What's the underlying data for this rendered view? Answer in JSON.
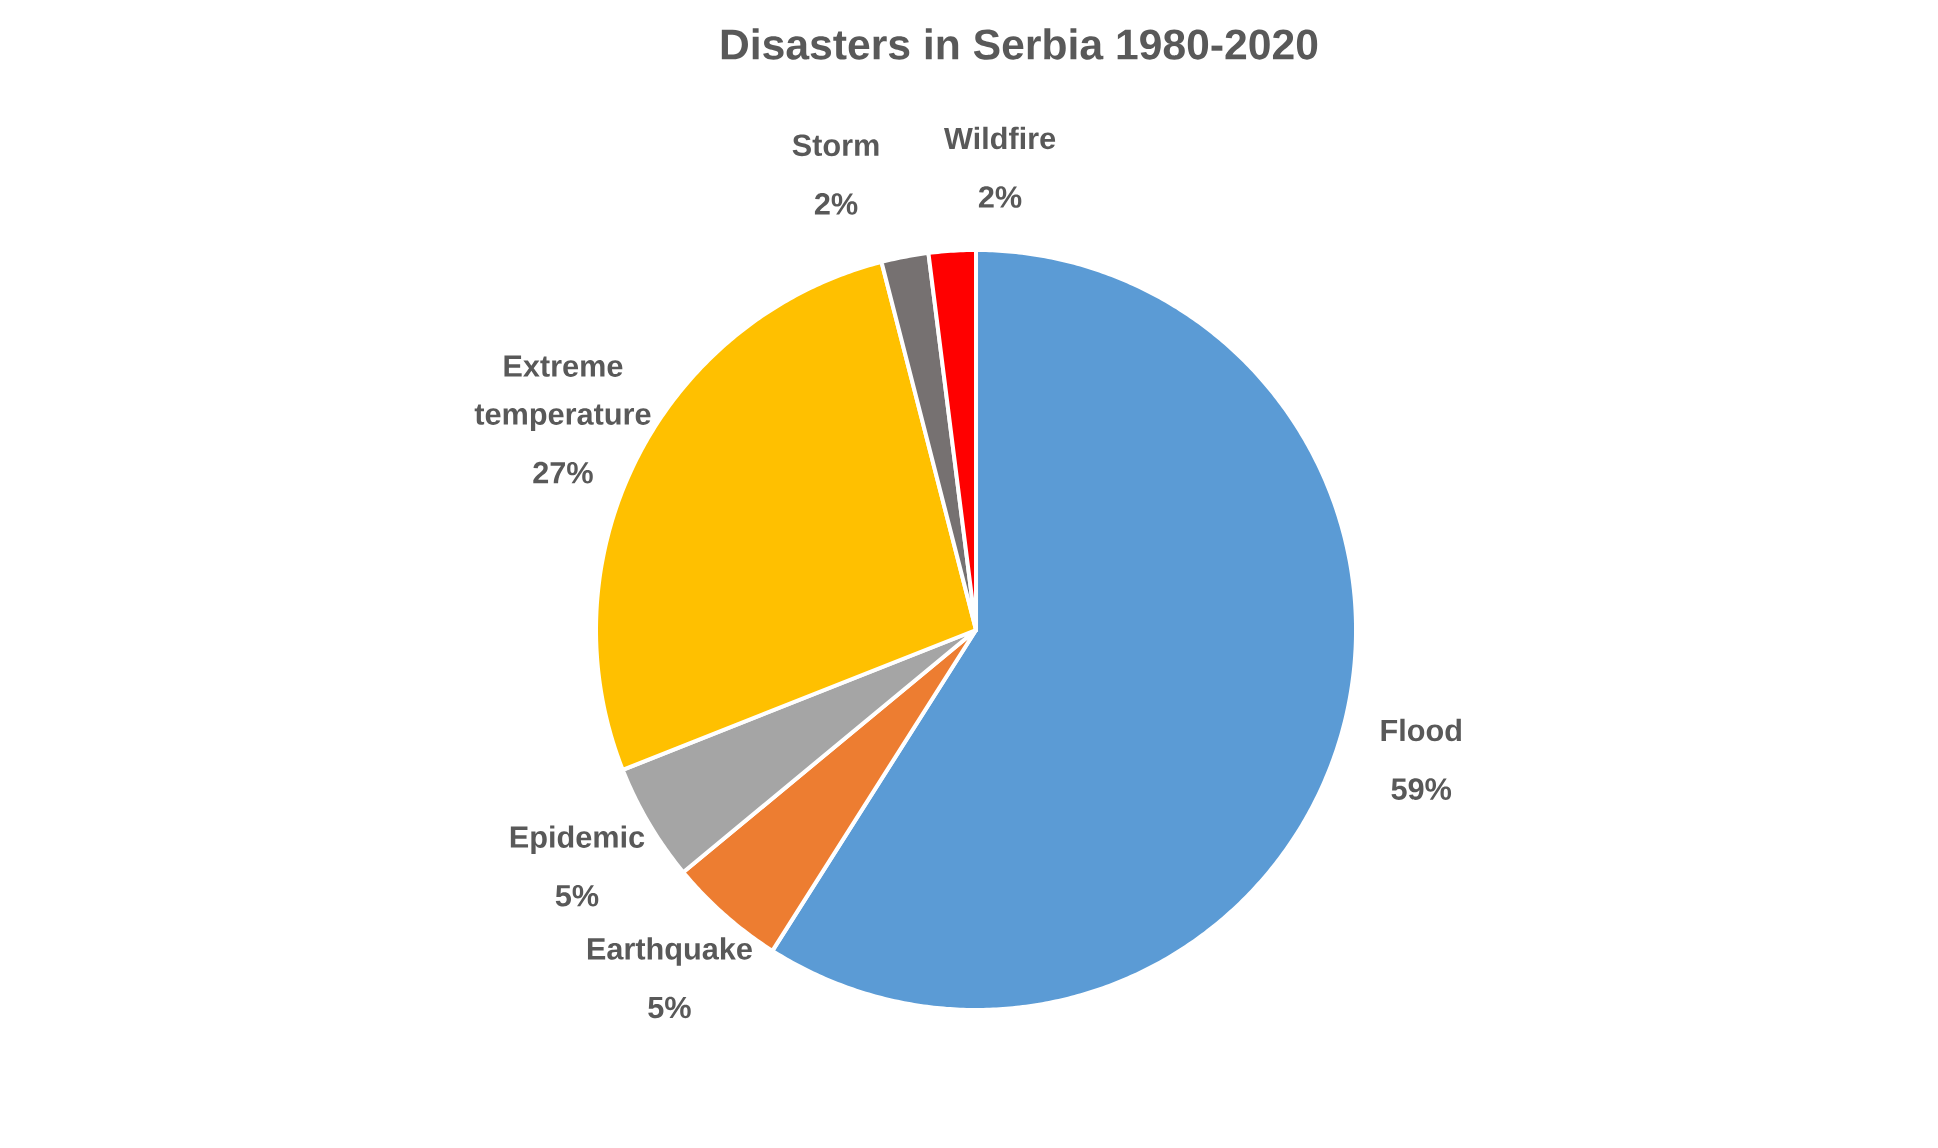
{
  "chart_data": {
    "type": "pie",
    "title": "Disasters in Serbia 1980-2020",
    "categories": [
      "Flood",
      "Earthquake",
      "Epidemic",
      "Extreme temperature",
      "Storm",
      "Wildfire"
    ],
    "values": [
      59,
      5,
      5,
      27,
      2,
      2
    ],
    "value_labels": [
      "59%",
      "5%",
      "5%",
      "27%",
      "2%",
      "2%"
    ],
    "colors": [
      "#5b9bd5",
      "#ed7d31",
      "#a5a5a5",
      "#ffc000",
      "#767171",
      "#ff0000"
    ]
  }
}
